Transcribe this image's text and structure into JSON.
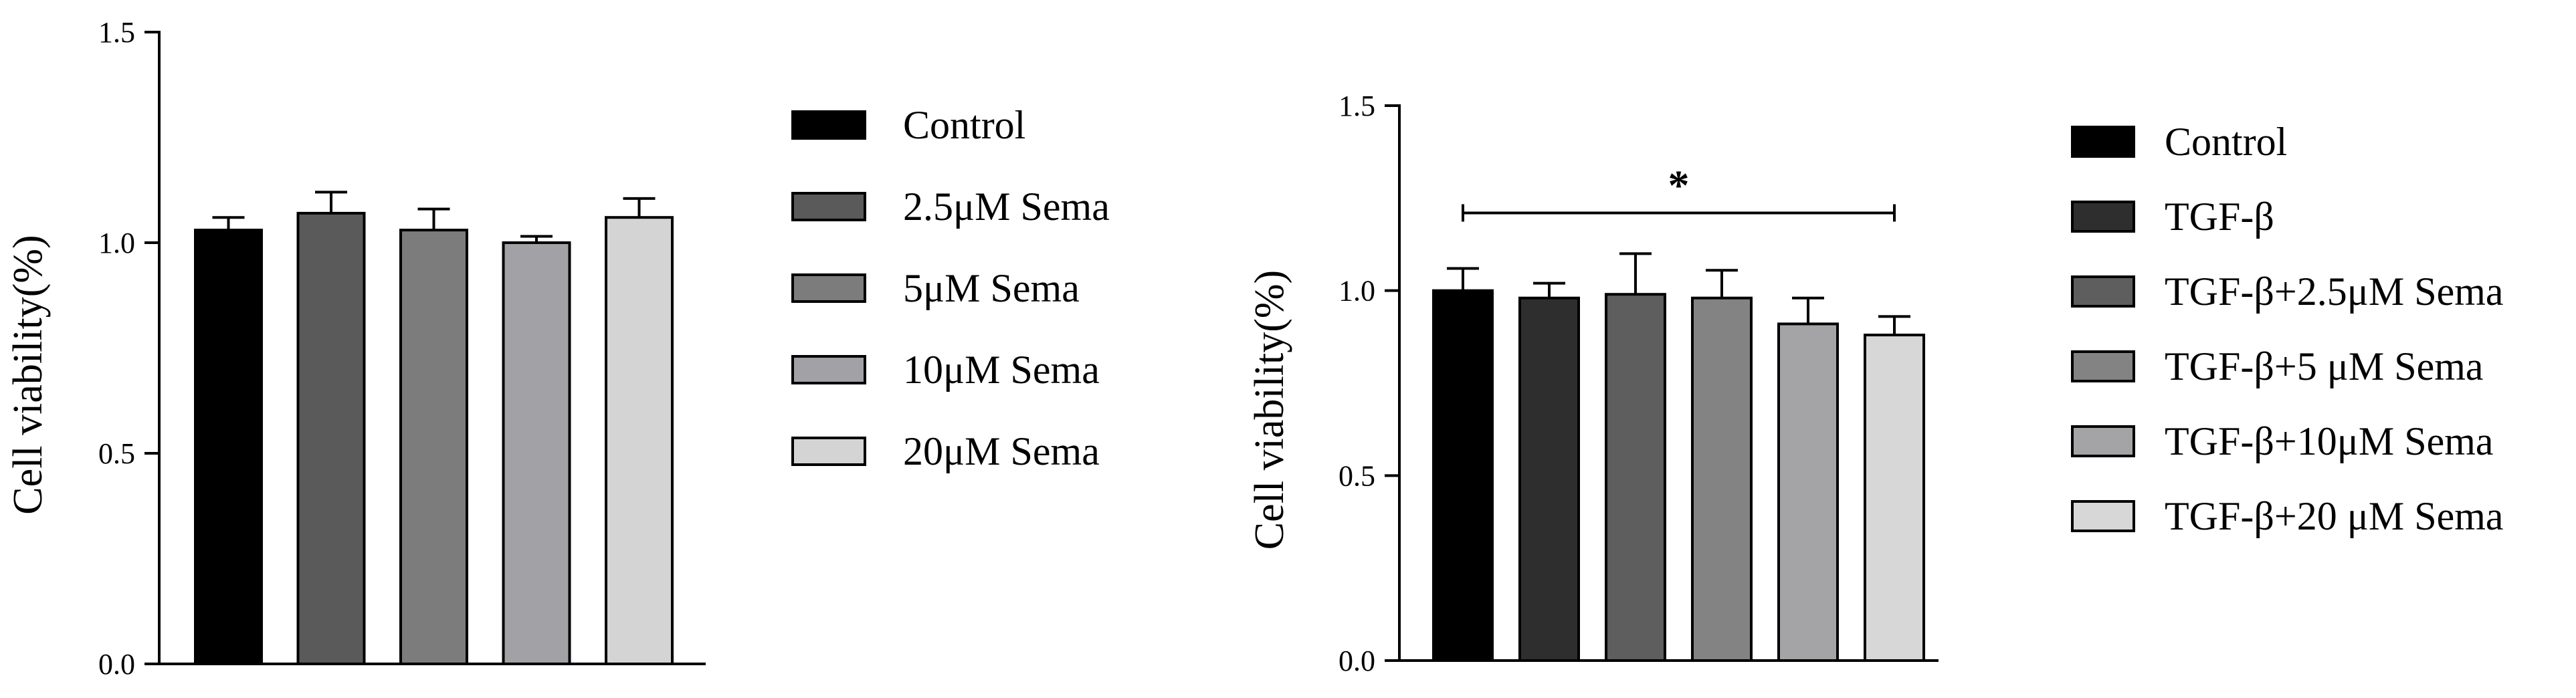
{
  "chart_data": [
    {
      "type": "bar",
      "ylabel": "Cell viability(%)",
      "ylim": [
        0,
        1.5
      ],
      "yticks": [
        "0.0",
        "0.5",
        "1.0",
        "1.5"
      ],
      "legend_position": "right",
      "series": [
        {
          "name": "Control",
          "value": 1.03,
          "error": 0.03,
          "color": "#000000"
        },
        {
          "name": "2.5μM Sema",
          "value": 1.07,
          "error": 0.05,
          "color": "#5a5a5a"
        },
        {
          "name": "5μM Sema",
          "value": 1.03,
          "error": 0.05,
          "color": "#7c7c7c"
        },
        {
          "name": "10μM Sema",
          "value": 1.0,
          "error": 0.015,
          "color": "#a2a2a6"
        },
        {
          "name": "20μM Sema",
          "value": 1.06,
          "error": 0.045,
          "color": "#d4d4d4"
        }
      ]
    },
    {
      "type": "bar",
      "ylabel": "Cell viability(%)",
      "ylim": [
        0,
        1.5
      ],
      "yticks": [
        "0.0",
        "0.5",
        "1.0",
        "1.5"
      ],
      "legend_position": "right",
      "significance": {
        "label": "*",
        "from": 0,
        "to": 5,
        "y": 1.21
      },
      "series": [
        {
          "name": "Control",
          "value": 1.0,
          "error": 0.06,
          "color": "#000000"
        },
        {
          "name": "TGF-β",
          "value": 0.98,
          "error": 0.04,
          "color": "#2e2e2e"
        },
        {
          "name": "TGF-β+2.5μM Sema",
          "value": 0.99,
          "error": 0.11,
          "color": "#5e5e5e"
        },
        {
          "name": "TGF-β+5 μM  Sema",
          "value": 0.98,
          "error": 0.075,
          "color": "#838383"
        },
        {
          "name": "TGF-β+10μM  Sema",
          "value": 0.91,
          "error": 0.07,
          "color": "#a4a4a6"
        },
        {
          "name": "TGF-β+20 μM  Sema",
          "value": 0.88,
          "error": 0.05,
          "color": "#d7d7d7"
        }
      ]
    }
  ]
}
